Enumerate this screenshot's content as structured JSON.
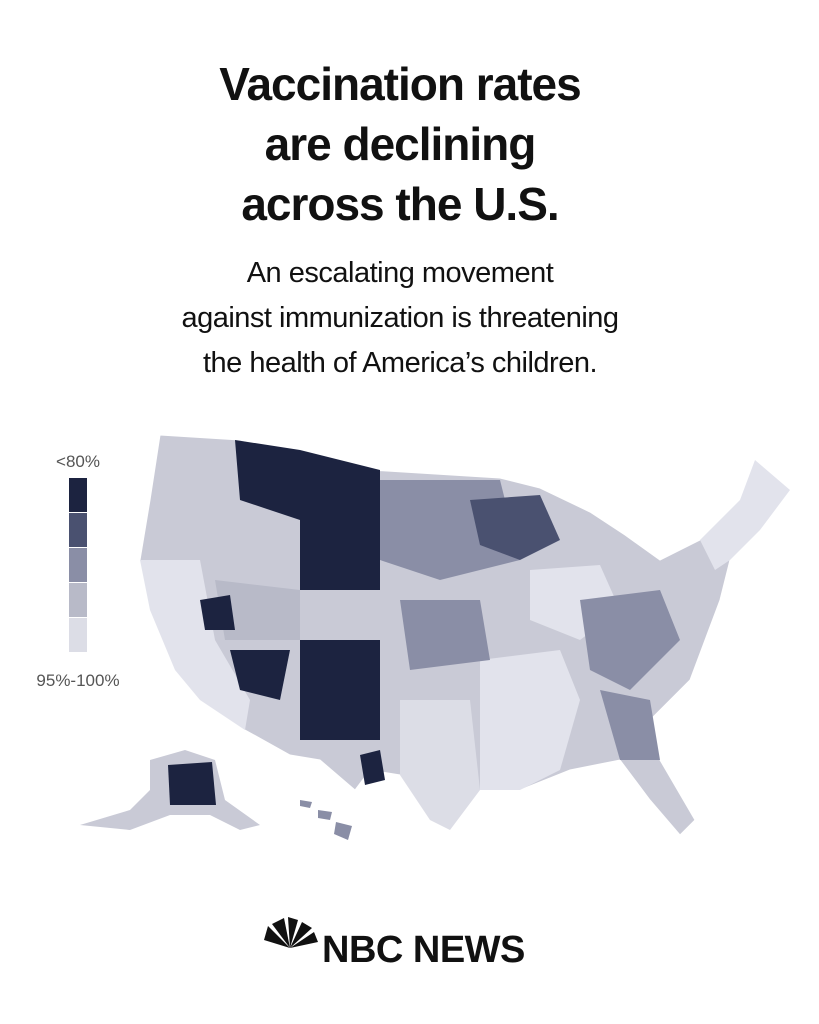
{
  "header": {
    "title_lines": [
      "Vaccination rates",
      "are declining",
      "across the U.S."
    ],
    "subtitle_lines": [
      "An escalating movement",
      "against immunization is threatening",
      "the health of America’s children."
    ]
  },
  "legend": {
    "top_label": "<80%",
    "bottom_label": "95%-100%",
    "colors": [
      "#1c2340",
      "#4a5170",
      "#8a8ea6",
      "#b8bac8",
      "#dcdde6"
    ]
  },
  "footer": {
    "logo": "NBC NEWS"
  }
}
